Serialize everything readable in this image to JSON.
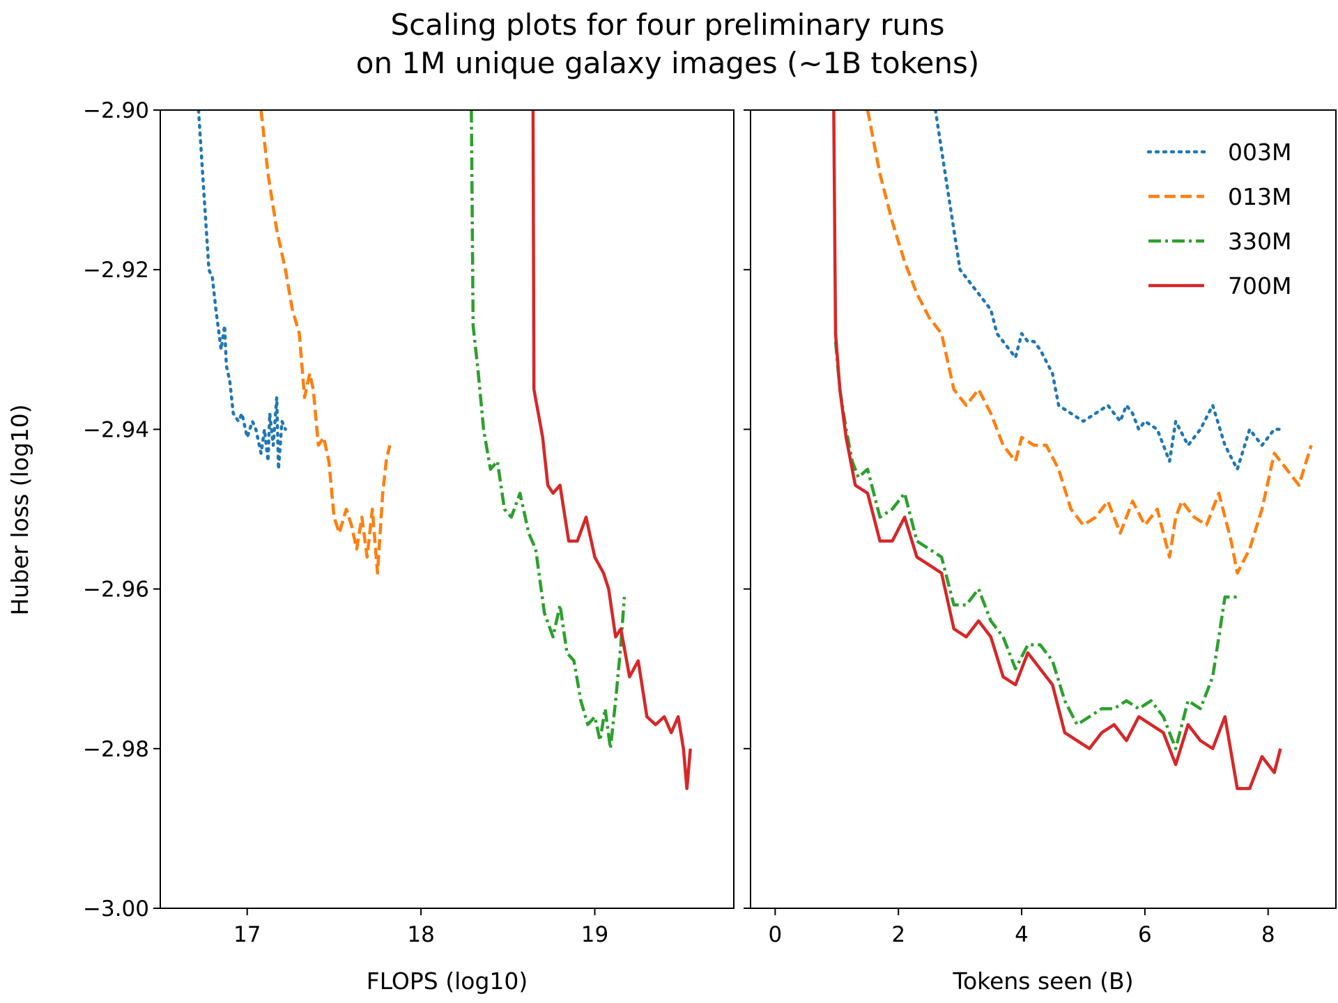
{
  "chart_data": {
    "type": "line",
    "title": [
      "Scaling plots for four preliminary runs",
      "on 1M unique galaxy images (~1B tokens)"
    ],
    "ylabel": "Huber loss (log10)",
    "ylim": [
      -3.0,
      -2.9
    ],
    "yticks": [
      -2.9,
      -2.92,
      -2.94,
      -2.96,
      -2.98,
      -3.0
    ],
    "ytick_labels": [
      "−2.90",
      "−2.92",
      "−2.94",
      "−2.96",
      "−2.98",
      "−3.00"
    ],
    "grid": false,
    "colors": {
      "003M": "#1f77b4",
      "013M": "#ff7f0e",
      "330M": "#2ca02c",
      "700M": "#d62728"
    },
    "panels": [
      {
        "id": "flops",
        "xlabel": "FLOPS (log10)",
        "xlim": [
          16.5,
          19.8
        ],
        "xticks": [
          17,
          18,
          19
        ],
        "xtick_labels": [
          "17",
          "18",
          "19"
        ],
        "series": [
          {
            "name": "003M",
            "style": "dotted",
            "x": [
              16.72,
              16.75,
              16.78,
              16.8,
              16.82,
              16.85,
              16.87,
              16.88,
              16.9,
              16.92,
              16.95,
              16.97,
              17.0,
              17.03,
              17.05,
              17.08,
              17.1,
              17.12,
              17.13,
              17.15,
              17.17,
              17.18,
              17.2,
              17.22
            ],
            "y": [
              -2.9,
              -2.91,
              -2.92,
              -2.921,
              -2.925,
              -2.93,
              -2.927,
              -2.932,
              -2.934,
              -2.938,
              -2.939,
              -2.938,
              -2.941,
              -2.939,
              -2.94,
              -2.943,
              -2.94,
              -2.944,
              -2.938,
              -2.942,
              -2.936,
              -2.945,
              -2.939,
              -2.94
            ]
          },
          {
            "name": "013M",
            "style": "dashed",
            "x": [
              17.08,
              17.12,
              17.17,
              17.22,
              17.26,
              17.3,
              17.33,
              17.36,
              17.38,
              17.41,
              17.44,
              17.47,
              17.5,
              17.53,
              17.57,
              17.6,
              17.63,
              17.66,
              17.69,
              17.72,
              17.75,
              17.78,
              17.8,
              17.82
            ],
            "y": [
              -2.9,
              -2.908,
              -2.915,
              -2.92,
              -2.925,
              -2.928,
              -2.936,
              -2.933,
              -2.935,
              -2.942,
              -2.941,
              -2.944,
              -2.951,
              -2.953,
              -2.95,
              -2.952,
              -2.955,
              -2.951,
              -2.956,
              -2.95,
              -2.958,
              -2.948,
              -2.944,
              -2.942
            ]
          },
          {
            "name": "330M",
            "style": "dashdot",
            "x": [
              18.29,
              18.3,
              18.33,
              18.36,
              18.4,
              18.44,
              18.48,
              18.52,
              18.57,
              18.62,
              18.66,
              18.71,
              18.76,
              18.8,
              18.84,
              18.88,
              18.92,
              18.96,
              19.0,
              19.03,
              19.06,
              19.09,
              19.12,
              19.15,
              19.17
            ],
            "y": [
              -2.9,
              -2.927,
              -2.933,
              -2.94,
              -2.945,
              -2.944,
              -2.95,
              -2.951,
              -2.948,
              -2.953,
              -2.955,
              -2.963,
              -2.966,
              -2.962,
              -2.968,
              -2.969,
              -2.974,
              -2.977,
              -2.976,
              -2.979,
              -2.975,
              -2.98,
              -2.974,
              -2.967,
              -2.961
            ]
          },
          {
            "name": "700M",
            "style": "solid",
            "x": [
              18.645,
              18.65,
              18.7,
              18.73,
              18.76,
              18.8,
              18.85,
              18.9,
              18.95,
              19.0,
              19.05,
              19.08,
              19.12,
              19.15,
              19.2,
              19.25,
              19.3,
              19.35,
              19.4,
              19.44,
              19.48,
              19.51,
              19.53,
              19.55
            ],
            "y": [
              -2.9,
              -2.935,
              -2.941,
              -2.947,
              -2.948,
              -2.947,
              -2.954,
              -2.954,
              -2.951,
              -2.956,
              -2.958,
              -2.96,
              -2.966,
              -2.965,
              -2.971,
              -2.969,
              -2.976,
              -2.977,
              -2.976,
              -2.978,
              -2.976,
              -2.98,
              -2.985,
              -2.98
            ]
          }
        ]
      },
      {
        "id": "tokens",
        "xlabel": "Tokens seen (B)",
        "xlim": [
          -0.4,
          9.1
        ],
        "xticks": [
          0,
          2,
          4,
          6,
          8
        ],
        "xtick_labels": [
          "0",
          "2",
          "4",
          "6",
          "8"
        ],
        "legend": {
          "placement": "top-right",
          "entries": [
            "003M",
            "013M",
            "330M",
            "700M"
          ]
        },
        "series": [
          {
            "name": "003M",
            "style": "dotted",
            "x": [
              2.6,
              2.7,
              2.8,
              2.9,
              3.0,
              3.1,
              3.3,
              3.5,
              3.6,
              3.8,
              3.9,
              4.0,
              4.1,
              4.2,
              4.3,
              4.5,
              4.6,
              4.8,
              5.0,
              5.2,
              5.4,
              5.6,
              5.7,
              5.8,
              5.9,
              6.0,
              6.2,
              6.4,
              6.5,
              6.7,
              6.9,
              7.1,
              7.3,
              7.5,
              7.7,
              7.9,
              8.1,
              8.2
            ],
            "y": [
              -2.9,
              -2.905,
              -2.91,
              -2.915,
              -2.92,
              -2.921,
              -2.923,
              -2.925,
              -2.928,
              -2.93,
              -2.931,
              -2.928,
              -2.929,
              -2.929,
              -2.93,
              -2.933,
              -2.937,
              -2.938,
              -2.939,
              -2.938,
              -2.937,
              -2.939,
              -2.937,
              -2.938,
              -2.94,
              -2.939,
              -2.94,
              -2.944,
              -2.939,
              -2.942,
              -2.94,
              -2.937,
              -2.942,
              -2.945,
              -2.94,
              -2.942,
              -2.94,
              -2.94
            ]
          },
          {
            "name": "013M",
            "style": "dashed",
            "x": [
              1.5,
              1.7,
              1.9,
              2.1,
              2.3,
              2.5,
              2.7,
              2.9,
              3.1,
              3.3,
              3.5,
              3.7,
              3.9,
              4.0,
              4.2,
              4.4,
              4.6,
              4.8,
              5.0,
              5.2,
              5.4,
              5.6,
              5.7,
              5.8,
              6.0,
              6.2,
              6.4,
              6.5,
              6.6,
              6.8,
              7.0,
              7.2,
              7.4,
              7.5,
              7.7,
              7.9,
              8.1,
              8.3,
              8.5,
              8.7
            ],
            "y": [
              -2.9,
              -2.908,
              -2.914,
              -2.919,
              -2.923,
              -2.926,
              -2.928,
              -2.935,
              -2.937,
              -2.935,
              -2.938,
              -2.942,
              -2.944,
              -2.941,
              -2.942,
              -2.942,
              -2.945,
              -2.95,
              -2.952,
              -2.951,
              -2.949,
              -2.953,
              -2.951,
              -2.949,
              -2.952,
              -2.95,
              -2.956,
              -2.951,
              -2.949,
              -2.951,
              -2.952,
              -2.948,
              -2.954,
              -2.958,
              -2.955,
              -2.95,
              -2.943,
              -2.945,
              -2.947,
              -2.942
            ]
          },
          {
            "name": "330M",
            "style": "dashdot",
            "x": [
              0.98,
              1.05,
              1.15,
              1.25,
              1.35,
              1.5,
              1.7,
              1.9,
              2.1,
              2.3,
              2.5,
              2.7,
              2.9,
              3.1,
              3.3,
              3.5,
              3.7,
              3.9,
              4.1,
              4.3,
              4.5,
              4.7,
              4.9,
              5.1,
              5.3,
              5.5,
              5.7,
              5.9,
              6.1,
              6.3,
              6.5,
              6.7,
              6.9,
              7.1,
              7.3,
              7.5
            ],
            "y": [
              -2.929,
              -2.935,
              -2.94,
              -2.944,
              -2.946,
              -2.945,
              -2.951,
              -2.95,
              -2.948,
              -2.954,
              -2.955,
              -2.956,
              -2.962,
              -2.962,
              -2.96,
              -2.964,
              -2.966,
              -2.97,
              -2.967,
              -2.967,
              -2.969,
              -2.974,
              -2.977,
              -2.976,
              -2.975,
              -2.975,
              -2.974,
              -2.975,
              -2.974,
              -2.976,
              -2.98,
              -2.974,
              -2.975,
              -2.971,
              -2.961,
              -2.961
            ]
          },
          {
            "name": "700M",
            "style": "solid",
            "x": [
              0.95,
              0.98,
              1.05,
              1.15,
              1.3,
              1.5,
              1.7,
              1.9,
              2.1,
              2.3,
              2.5,
              2.7,
              2.9,
              3.1,
              3.3,
              3.5,
              3.7,
              3.9,
              4.1,
              4.3,
              4.5,
              4.7,
              4.9,
              5.1,
              5.3,
              5.5,
              5.7,
              5.9,
              6.1,
              6.3,
              6.5,
              6.7,
              6.9,
              7.1,
              7.3,
              7.5,
              7.7,
              7.9,
              8.1,
              8.2
            ],
            "y": [
              -2.9,
              -2.928,
              -2.935,
              -2.941,
              -2.947,
              -2.948,
              -2.954,
              -2.954,
              -2.951,
              -2.956,
              -2.957,
              -2.958,
              -2.965,
              -2.966,
              -2.964,
              -2.966,
              -2.971,
              -2.972,
              -2.968,
              -2.97,
              -2.972,
              -2.978,
              -2.979,
              -2.98,
              -2.978,
              -2.977,
              -2.979,
              -2.976,
              -2.977,
              -2.978,
              -2.982,
              -2.977,
              -2.979,
              -2.98,
              -2.976,
              -2.985,
              -2.985,
              -2.981,
              -2.983,
              -2.98
            ]
          }
        ]
      }
    ]
  }
}
